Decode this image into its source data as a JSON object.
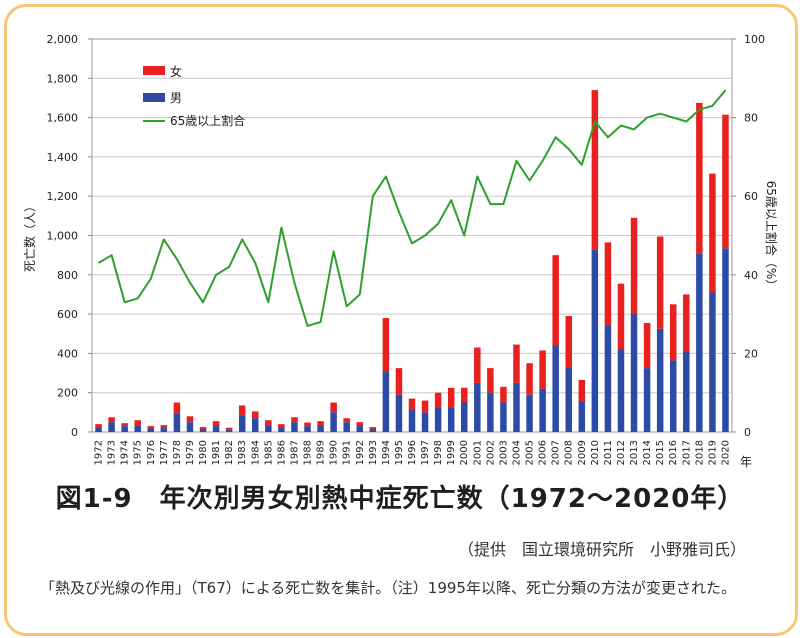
{
  "chart_data": {
    "type": "bar",
    "stacked": true,
    "title": "図1-9　年次別男女別熱中症死亡数（1972〜2020年）",
    "xlabel": "年",
    "ylabel": "死亡数（人）",
    "y2label": "65歳以上割合（%）",
    "ylim": [
      0,
      2000
    ],
    "y2lim": [
      0,
      100
    ],
    "y_ticks": [
      "0",
      "200",
      "400",
      "600",
      "800",
      "1,000",
      "1,200",
      "1,400",
      "1,600",
      "1,800",
      "2,000"
    ],
    "y2_ticks": [
      "0",
      "20",
      "40",
      "60",
      "80",
      "100"
    ],
    "grid": true,
    "legend_position": "top-left",
    "categories": [
      "1972",
      "1973",
      "1974",
      "1975",
      "1976",
      "1977",
      "1978",
      "1979",
      "1980",
      "1981",
      "1982",
      "1983",
      "1984",
      "1985",
      "1986",
      "1987",
      "1988",
      "1989",
      "1990",
      "1991",
      "1992",
      "1993",
      "1994",
      "1995",
      "1996",
      "1997",
      "1998",
      "1999",
      "2000",
      "2001",
      "2002",
      "2003",
      "2004",
      "2005",
      "2006",
      "2007",
      "2008",
      "2009",
      "2010",
      "2011",
      "2012",
      "2013",
      "2014",
      "2015",
      "2016",
      "2017",
      "2018",
      "2019",
      "2020"
    ],
    "series": [
      {
        "name": "男",
        "kind": "bar",
        "color": "#2b4ba6",
        "values": [
          25,
          50,
          30,
          35,
          18,
          20,
          95,
          50,
          15,
          30,
          12,
          85,
          70,
          35,
          25,
          50,
          30,
          35,
          100,
          50,
          30,
          15,
          305,
          190,
          115,
          100,
          125,
          125,
          150,
          250,
          200,
          150,
          250,
          190,
          220,
          440,
          330,
          155,
          930,
          545,
          420,
          605,
          325,
          525,
          365,
          410,
          910,
          710,
          935
        ]
      },
      {
        "name": "女",
        "kind": "bar",
        "color": "#e8201e",
        "values": [
          15,
          25,
          15,
          25,
          12,
          15,
          55,
          30,
          10,
          25,
          10,
          50,
          35,
          25,
          15,
          25,
          18,
          20,
          50,
          20,
          20,
          10,
          275,
          135,
          55,
          60,
          75,
          100,
          75,
          180,
          125,
          80,
          195,
          160,
          195,
          460,
          260,
          110,
          810,
          420,
          335,
          485,
          230,
          470,
          285,
          290,
          765,
          605,
          680
        ]
      },
      {
        "name": "65歳以上割合",
        "kind": "line",
        "axis": "right",
        "color": "#2ea02c",
        "values": [
          43,
          45,
          33,
          34,
          39,
          49,
          44,
          38,
          33,
          40,
          42,
          49,
          43,
          33,
          52,
          38,
          27,
          28,
          46,
          32,
          35,
          60,
          65,
          56,
          48,
          50,
          53,
          59,
          50,
          65,
          58,
          58,
          69,
          64,
          69,
          75,
          72,
          68,
          79,
          75,
          78,
          77,
          80,
          81,
          80,
          79,
          82,
          83,
          87
        ]
      }
    ]
  },
  "credit": "（提供　国立環境研究所　小野雅司氏）",
  "footnote": "「熱及び光線の作用」（T67）による死亡数を集計。（注）1995年以降、死亡分類の方法が変更された。"
}
